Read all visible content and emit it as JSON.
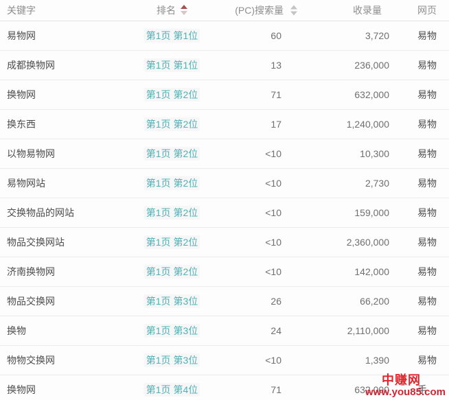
{
  "table": {
    "columns": [
      {
        "label": "关键字",
        "sortable": false
      },
      {
        "label": "排名",
        "sortable": true,
        "sort_state": "ascending-active"
      },
      {
        "label": "(PC)搜索量",
        "sortable": true,
        "sort_state": "inactive"
      },
      {
        "label": "收录量",
        "sortable": false
      },
      {
        "label": "网页",
        "sortable": false
      }
    ],
    "rows": [
      {
        "keyword": "易物网",
        "rank": "第1页 第1位",
        "pc_volume": "60",
        "indexed": "3,720",
        "page": "易物"
      },
      {
        "keyword": "成都换物网",
        "rank": "第1页 第1位",
        "pc_volume": "13",
        "indexed": "236,000",
        "page": "易物"
      },
      {
        "keyword": "换物网",
        "rank": "第1页 第2位",
        "pc_volume": "71",
        "indexed": "632,000",
        "page": "易物"
      },
      {
        "keyword": "换东西",
        "rank": "第1页 第2位",
        "pc_volume": "17",
        "indexed": "1,240,000",
        "page": "易物"
      },
      {
        "keyword": "以物易物网",
        "rank": "第1页 第2位",
        "pc_volume": "<10",
        "indexed": "10,300",
        "page": "易物"
      },
      {
        "keyword": "易物网站",
        "rank": "第1页 第2位",
        "pc_volume": "<10",
        "indexed": "2,730",
        "page": "易物"
      },
      {
        "keyword": "交换物品的网站",
        "rank": "第1页 第2位",
        "pc_volume": "<10",
        "indexed": "159,000",
        "page": "易物"
      },
      {
        "keyword": "物品交换网站",
        "rank": "第1页 第2位",
        "pc_volume": "<10",
        "indexed": "2,360,000",
        "page": "易物"
      },
      {
        "keyword": "济南换物网",
        "rank": "第1页 第2位",
        "pc_volume": "<10",
        "indexed": "142,000",
        "page": "易物"
      },
      {
        "keyword": "物品交换网",
        "rank": "第1页 第3位",
        "pc_volume": "26",
        "indexed": "66,200",
        "page": "易物"
      },
      {
        "keyword": "换物",
        "rank": "第1页 第3位",
        "pc_volume": "24",
        "indexed": "2,110,000",
        "page": "易物"
      },
      {
        "keyword": "物物交换网",
        "rank": "第1页 第3位",
        "pc_volume": "<10",
        "indexed": "1,390",
        "page": "易物"
      },
      {
        "keyword": "换物网",
        "rank": "第1页 第4位",
        "pc_volume": "71",
        "indexed": "632,000",
        "page": "手"
      }
    ]
  },
  "watermark": {
    "site_name": "中赚网",
    "site_url": "www.you85.com"
  },
  "colors": {
    "rank_link_teal": "#4fb0b5",
    "sort_active_red": "#a8504e",
    "sort_inactive_gray": "#c4c4c4",
    "watermark_red": "#e0262c"
  }
}
